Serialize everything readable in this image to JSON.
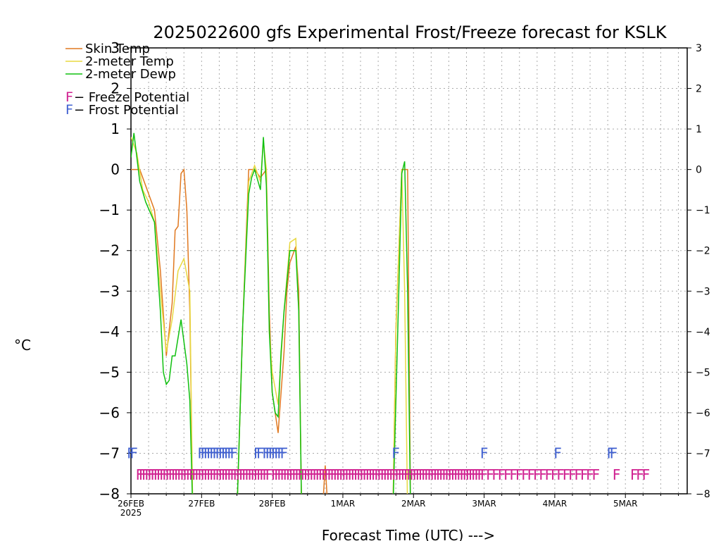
{
  "chart_data": {
    "type": "line",
    "title": "2025022600 gfs Experimental Frost/Freeze forecast for KSLK",
    "ylabel": "°C",
    "xlabel": "Forecast Time (UTC) --->",
    "ylim": [
      -8,
      3
    ],
    "xlim_hours": [
      0,
      189
    ],
    "grid": true,
    "legend_position": "top-left",
    "y_ticks": [
      3,
      2,
      1,
      0,
      -1,
      -2,
      -3,
      -4,
      -5,
      -6,
      -7,
      -8
    ],
    "y_tick_labels": [
      "3",
      "2",
      "1",
      "0",
      "−1",
      "−2",
      "−3",
      "−4",
      "−5",
      "−6",
      "−7",
      "−8"
    ],
    "x_ticks": [
      {
        "label": "26FEB",
        "sub": "2025",
        "hour": 0
      },
      {
        "label": "27FEB",
        "sub": "",
        "hour": 24
      },
      {
        "label": "28FEB",
        "sub": "",
        "hour": 48
      },
      {
        "label": "1MAR",
        "sub": "",
        "hour": 72
      },
      {
        "label": "2MAR",
        "sub": "",
        "hour": 96
      },
      {
        "label": "3MAR",
        "sub": "",
        "hour": 120
      },
      {
        "label": "4MAR",
        "sub": "",
        "hour": 144
      },
      {
        "label": "5MAR",
        "sub": "",
        "hour": 168
      }
    ],
    "series": [
      {
        "name": "Skin Temp",
        "color": "#e07820",
        "points": [
          [
            0,
            0
          ],
          [
            3,
            0
          ],
          [
            6,
            -0.6
          ],
          [
            8,
            -1
          ],
          [
            10,
            -2.5
          ],
          [
            12,
            -4.6
          ],
          [
            14,
            -3.3
          ],
          [
            15,
            -1.5
          ],
          [
            16,
            -1.4
          ],
          [
            17,
            -0.1
          ],
          [
            18,
            0
          ],
          [
            19,
            -1
          ],
          [
            20,
            -3.5
          ],
          [
            21,
            -8.5
          ],
          [
            36,
            -8.5
          ],
          [
            38,
            -3.8
          ],
          [
            40,
            0
          ],
          [
            42,
            0
          ],
          [
            44,
            -0.2
          ],
          [
            45,
            -0.1
          ],
          [
            46,
            0
          ],
          [
            47,
            -3.5
          ],
          [
            48,
            -5.5
          ],
          [
            50,
            -6.5
          ],
          [
            52,
            -4.5
          ],
          [
            53,
            -3
          ],
          [
            54,
            -2.3
          ],
          [
            56,
            -1.9
          ],
          [
            57,
            -3
          ],
          [
            58,
            -8.5
          ],
          [
            65,
            -8.5
          ],
          [
            66,
            -7.3
          ],
          [
            67,
            -8.5
          ],
          [
            89,
            -8.5
          ],
          [
            90,
            -4
          ],
          [
            92,
            0
          ],
          [
            94,
            0
          ],
          [
            95,
            -8.5
          ]
        ]
      },
      {
        "name": "2-meter Temp",
        "color": "#e8d840",
        "points": [
          [
            0,
            0.8
          ],
          [
            2,
            0.4
          ],
          [
            4,
            -0.5
          ],
          [
            6,
            -0.8
          ],
          [
            8,
            -1.3
          ],
          [
            10,
            -3
          ],
          [
            12,
            -4.5
          ],
          [
            14,
            -3.7
          ],
          [
            16,
            -2.5
          ],
          [
            18,
            -2.2
          ],
          [
            20,
            -3
          ],
          [
            21,
            -8.5
          ],
          [
            36,
            -8.5
          ],
          [
            38,
            -3.8
          ],
          [
            40,
            -0.3
          ],
          [
            42,
            0.1
          ],
          [
            44,
            -0.3
          ],
          [
            45,
            0.7
          ],
          [
            46,
            0
          ],
          [
            47,
            -4
          ],
          [
            48,
            -5
          ],
          [
            50,
            -5.8
          ],
          [
            52,
            -3.5
          ],
          [
            54,
            -1.8
          ],
          [
            56,
            -1.7
          ],
          [
            57,
            -3.5
          ],
          [
            58,
            -8.5
          ],
          [
            89,
            -8.5
          ],
          [
            90,
            -4
          ],
          [
            92,
            0
          ],
          [
            93,
            -3
          ],
          [
            94,
            -8.5
          ]
        ]
      },
      {
        "name": "2-meter Dewp",
        "color": "#10c010",
        "points": [
          [
            0,
            0.3
          ],
          [
            1,
            0.9
          ],
          [
            3,
            -0.3
          ],
          [
            5,
            -0.8
          ],
          [
            8,
            -1.3
          ],
          [
            10,
            -3.5
          ],
          [
            11,
            -5
          ],
          [
            12,
            -5.3
          ],
          [
            13,
            -5.2
          ],
          [
            14,
            -4.6
          ],
          [
            15,
            -4.6
          ],
          [
            17,
            -3.7
          ],
          [
            19,
            -4.8
          ],
          [
            20,
            -5.7
          ],
          [
            21,
            -8.5
          ],
          [
            36,
            -8.5
          ],
          [
            38,
            -3.8
          ],
          [
            40,
            -0.6
          ],
          [
            41,
            -0.2
          ],
          [
            42,
            0
          ],
          [
            44,
            -0.5
          ],
          [
            45,
            0.8
          ],
          [
            46,
            -0.4
          ],
          [
            47,
            -4
          ],
          [
            48,
            -5.5
          ],
          [
            49,
            -6
          ],
          [
            50,
            -6.1
          ],
          [
            51,
            -4.5
          ],
          [
            52,
            -3.5
          ],
          [
            54,
            -2
          ],
          [
            56,
            -2
          ],
          [
            57,
            -3.5
          ],
          [
            58,
            -8.5
          ],
          [
            89,
            -8.5
          ],
          [
            91,
            -3
          ],
          [
            92,
            -0.1
          ],
          [
            93,
            0.2
          ],
          [
            94,
            -3
          ],
          [
            95,
            -8.5
          ]
        ]
      }
    ],
    "legend": [
      {
        "label": "Skin Temp",
        "color": "#e07820"
      },
      {
        "label": "2-meter Temp",
        "color": "#e8d840"
      },
      {
        "label": "2-meter Dewp",
        "color": "#10c010"
      }
    ],
    "potential_legend": [
      {
        "letter": "F",
        "label": " − Freeze Potential",
        "color": "#d02090"
      },
      {
        "letter": "F",
        "label": " − Frost Potential",
        "color": "#4060d0"
      }
    ],
    "frost_marks_hours": [
      0,
      1,
      24,
      25,
      26,
      27,
      28,
      29,
      30,
      31,
      32,
      33,
      34,
      35,
      43,
      44,
      46,
      47,
      48,
      49,
      50,
      51,
      52,
      90,
      120,
      145,
      163,
      164
    ],
    "freeze_marks": {
      "dense_ranges": [
        [
          3,
          47
        ],
        [
          49,
          119
        ]
      ],
      "sparse_hours": [
        120,
        122,
        124,
        126,
        128,
        130,
        132,
        134,
        136,
        138,
        140,
        142,
        144,
        146,
        148,
        150,
        152,
        154,
        156,
        158,
        165,
        171,
        173,
        175
      ]
    }
  }
}
